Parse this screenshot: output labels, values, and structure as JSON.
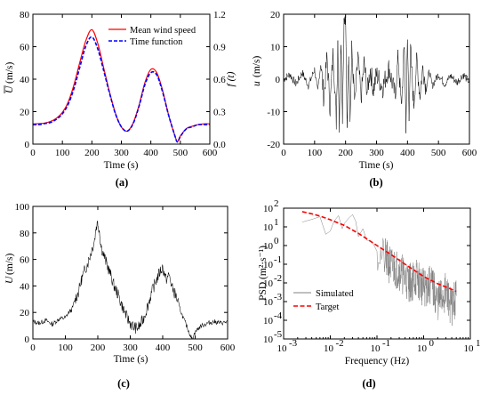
{
  "chart_data": [
    {
      "panel_label": "(a)",
      "type": "line",
      "xlabel": "Time (s)",
      "ylabel_italic": "U",
      "ylabel_unit": "(m/s)",
      "ylabel_right": "f (t)",
      "xlim": [
        0,
        600
      ],
      "ylim": [
        0,
        80
      ],
      "ylim_right": [
        0,
        1.2
      ],
      "xticks": [
        "0",
        "100",
        "200",
        "300",
        "400",
        "500",
        "600"
      ],
      "yticks": [
        "0",
        "20",
        "40",
        "60",
        "80"
      ],
      "yticks_right": [
        "0.0",
        "0.3",
        "0.6",
        "0.9",
        "1.2"
      ],
      "legend_position": "top-right",
      "series": [
        {
          "name": "Mean wind speed",
          "color": "#ff0000",
          "dash": "solid",
          "axis": "left",
          "x": [
            0,
            20,
            40,
            60,
            80,
            100,
            120,
            140,
            160,
            180,
            200,
            220,
            240,
            260,
            280,
            300,
            320,
            340,
            360,
            380,
            400,
            420,
            440,
            460,
            480,
            490,
            500,
            520,
            540,
            560,
            580,
            600
          ],
          "y": [
            12.5,
            12.6,
            13,
            14,
            16,
            19.5,
            26,
            37,
            51,
            64,
            70.5,
            62,
            47,
            32,
            19,
            10.5,
            8,
            13,
            24,
            38,
            46,
            44,
            33,
            18,
            6,
            1.5,
            5,
            9.5,
            11,
            12,
            12.5,
            12.5
          ]
        },
        {
          "name": "Time function",
          "color": "#0000ff",
          "dash": "dashed",
          "axis": "right",
          "x": [
            0,
            20,
            40,
            60,
            80,
            100,
            120,
            140,
            160,
            180,
            200,
            220,
            240,
            260,
            280,
            300,
            320,
            340,
            360,
            380,
            400,
            420,
            440,
            460,
            480,
            490,
            500,
            520,
            540,
            560,
            580,
            600
          ],
          "y": [
            0.18,
            0.18,
            0.19,
            0.2,
            0.23,
            0.28,
            0.37,
            0.52,
            0.72,
            0.91,
            0.99,
            0.88,
            0.68,
            0.47,
            0.28,
            0.16,
            0.12,
            0.19,
            0.35,
            0.55,
            0.66,
            0.64,
            0.48,
            0.27,
            0.09,
            0.02,
            0.07,
            0.14,
            0.16,
            0.18,
            0.18,
            0.18
          ]
        }
      ]
    },
    {
      "panel_label": "(b)",
      "type": "line",
      "xlabel": "Time (s)",
      "ylabel_italic": "u",
      "ylabel_unit": "(m/s)",
      "xlim": [
        0,
        600
      ],
      "ylim": [
        -20,
        20
      ],
      "xticks": [
        "0",
        "100",
        "200",
        "300",
        "400",
        "500",
        "600"
      ],
      "yticks": [
        "-20",
        "-10",
        "0",
        "10",
        "20"
      ],
      "series": [
        {
          "color": "#000000",
          "x": [
            0,
            20,
            40,
            60,
            80,
            100,
            110,
            120,
            130,
            140,
            150,
            160,
            170,
            175,
            180,
            185,
            190,
            195,
            200,
            205,
            210,
            215,
            220,
            230,
            240,
            250,
            260,
            270,
            280,
            290,
            300,
            320,
            340,
            360,
            370,
            380,
            390,
            395,
            400,
            405,
            410,
            420,
            430,
            440,
            450,
            460,
            470,
            480,
            500,
            520,
            540,
            560,
            580,
            600
          ],
          "y": [
            0,
            1.5,
            -1.5,
            2,
            -2,
            3,
            -4,
            5,
            -6,
            7,
            -9,
            9,
            -13,
            12,
            -15,
            14,
            -11,
            17,
            18,
            -14,
            10,
            -12,
            9,
            -8,
            7,
            -6,
            5,
            -4,
            3,
            -3,
            1.5,
            -2.5,
            3.5,
            -5,
            7,
            -9,
            11,
            -14,
            12,
            -10,
            9,
            -8,
            6,
            -5,
            4,
            -3,
            2.5,
            -2,
            1.5,
            -1.5,
            1,
            -1,
            1.5,
            -1
          ]
        }
      ]
    },
    {
      "panel_label": "(c)",
      "type": "line",
      "xlabel": "Time (s)",
      "ylabel_italic": "U",
      "ylabel_unit": "(m/s)",
      "xlim": [
        0,
        600
      ],
      "ylim": [
        0,
        100
      ],
      "xticks": [
        "0",
        "100",
        "200",
        "300",
        "400",
        "500",
        "600"
      ],
      "yticks": [
        "0",
        "20",
        "40",
        "60",
        "80",
        "100"
      ],
      "series": [
        {
          "color": "#000000",
          "x": [
            0,
            20,
            40,
            60,
            80,
            100,
            110,
            120,
            130,
            140,
            150,
            160,
            170,
            180,
            190,
            195,
            200,
            205,
            210,
            220,
            230,
            240,
            250,
            260,
            270,
            280,
            290,
            300,
            310,
            320,
            330,
            340,
            350,
            360,
            370,
            380,
            390,
            400,
            410,
            420,
            430,
            440,
            450,
            460,
            470,
            480,
            490,
            500,
            510,
            520,
            540,
            560,
            580,
            600
          ],
          "y": [
            13,
            12,
            14,
            11,
            15,
            16,
            20,
            22,
            30,
            35,
            45,
            52,
            58,
            66,
            75,
            85,
            88,
            82,
            70,
            62,
            55,
            48,
            40,
            35,
            28,
            22,
            16,
            12,
            9,
            8,
            10,
            15,
            22,
            30,
            38,
            44,
            50,
            54,
            45,
            48,
            38,
            33,
            25,
            18,
            12,
            6,
            0,
            5,
            8,
            10,
            12,
            13,
            12,
            13
          ]
        }
      ]
    },
    {
      "panel_label": "(d)",
      "type": "line",
      "xlabel": "Frequency (Hz)",
      "ylabel": "PSD (m²·s⁻¹)",
      "x_scale": "log",
      "y_scale": "log",
      "xlim": [
        0.001,
        10
      ],
      "ylim": [
        1e-05,
        100
      ],
      "xtick_exponents": [
        "-3",
        "-2",
        "-1",
        "0",
        "1"
      ],
      "ytick_exponents": [
        "-5",
        "-4",
        "-3",
        "-2",
        "-1",
        "0",
        "1",
        "2"
      ],
      "legend_position": "bottom-left",
      "series": [
        {
          "name": "Simulated",
          "color": "#808080",
          "dash": "solid",
          "x": [
            0.0025,
            0.004,
            0.006,
            0.008,
            0.01,
            0.012,
            0.015,
            0.018,
            0.02,
            0.025,
            0.03,
            0.035,
            0.04,
            0.05,
            0.06,
            0.08,
            0.1,
            0.15,
            0.2,
            0.3,
            0.5,
            0.7,
            1,
            1.5,
            2,
            3,
            4,
            5
          ],
          "y": [
            18,
            25,
            35,
            4,
            6,
            20,
            40,
            8,
            15,
            30,
            45,
            20,
            3,
            8,
            2,
            1.5,
            0.5,
            0.2,
            0.08,
            0.05,
            0.01,
            0.02,
            0.005,
            0.008,
            0.001,
            0.003,
            0.0005,
            0.002
          ]
        },
        {
          "name": "Target",
          "color": "#ff0000",
          "dash": "dashed",
          "x": [
            0.0025,
            0.004,
            0.006,
            0.01,
            0.02,
            0.04,
            0.07,
            0.1,
            0.2,
            0.4,
            0.7,
            1,
            2,
            3,
            4,
            5
          ],
          "y": [
            65,
            50,
            38,
            24,
            12,
            4.5,
            1.8,
            1,
            0.33,
            0.1,
            0.04,
            0.022,
            0.009,
            0.006,
            0.0045,
            0.0035
          ]
        }
      ]
    }
  ]
}
